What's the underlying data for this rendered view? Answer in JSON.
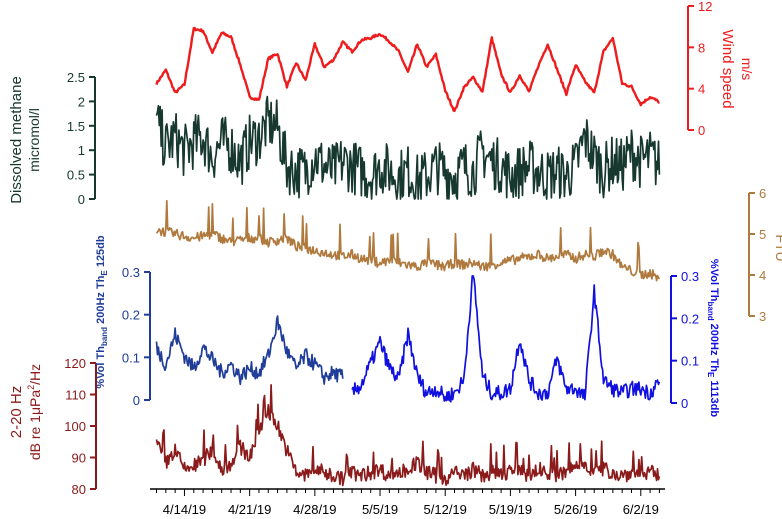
{
  "chart_data": {
    "type": "line",
    "x_axis": {
      "ticks": [
        {
          "day": 14,
          "label": "4/14/19"
        },
        {
          "day": 21,
          "label": "4/21/19"
        },
        {
          "day": 28,
          "label": "4/28/19"
        },
        {
          "day": 35,
          "label": "5/5/19"
        },
        {
          "day": 42,
          "label": "5/12/19"
        },
        {
          "day": 49,
          "label": "5/19/19"
        },
        {
          "day": 56,
          "label": "5/26/19"
        },
        {
          "day": 63,
          "label": "6/2/19"
        }
      ],
      "range_days": [
        10.3,
        65.6
      ]
    },
    "panels": [
      {
        "id": "wind",
        "axis_side": "right",
        "color": "#ee1c1c",
        "ylabel": "Wind speed",
        "unit": "m/s",
        "ylim": [
          0,
          12
        ],
        "ticks": [
          "0",
          "4",
          "8",
          "12"
        ],
        "x": [
          11,
          12,
          13,
          14,
          15,
          16,
          17,
          18,
          19,
          20,
          21,
          22,
          23,
          24,
          25,
          26,
          27,
          28,
          29,
          30,
          31,
          32,
          33,
          34,
          35,
          36,
          37,
          38,
          39,
          40,
          41,
          42,
          43,
          44,
          45,
          46,
          47,
          48,
          49,
          50,
          51,
          52,
          53,
          54,
          55,
          56,
          57,
          58,
          59,
          60,
          61,
          62,
          63,
          64,
          65
        ],
        "values": [
          4.5,
          5.8,
          3.6,
          4.4,
          9.8,
          9.6,
          7.5,
          9.4,
          9,
          6.3,
          3.2,
          2.9,
          6.9,
          7.4,
          4.2,
          6.5,
          4.8,
          8.3,
          6.1,
          6.8,
          8.5,
          7.6,
          8.7,
          8.9,
          9.3,
          8.6,
          7.6,
          5.6,
          8.3,
          6.1,
          7.3,
          3.8,
          1.8,
          4.1,
          5.1,
          3.7,
          8.9,
          5.4,
          3.6,
          5.3,
          3.7,
          6.2,
          8.3,
          5.9,
          3.5,
          6.3,
          4.7,
          3.6,
          7.6,
          8.9,
          4.5,
          4.2,
          2.5,
          3.2,
          2.7
        ]
      },
      {
        "id": "methane",
        "axis_side": "left",
        "color": "#16382f",
        "ylabel": "Dissolved methane",
        "unit": "micromol/l",
        "ylim": [
          0,
          2.5
        ],
        "ticks": [
          "0",
          "0.5",
          "1",
          "1.5",
          "2",
          "2.5"
        ],
        "x": [
          11,
          12,
          13,
          14,
          15,
          16,
          17,
          18,
          19,
          20,
          21,
          22,
          23,
          24,
          25,
          26,
          27,
          28,
          29,
          30,
          31,
          32,
          33,
          34,
          35,
          36,
          37,
          38,
          39,
          40,
          41,
          42,
          43,
          44,
          45,
          46,
          47,
          48,
          49,
          50,
          51,
          52,
          53,
          54,
          55,
          56,
          57,
          58,
          59,
          60,
          61,
          62,
          63,
          64,
          65
        ],
        "values": [
          1.4,
          0.9,
          1.1,
          0.8,
          1.0,
          1.1,
          0.7,
          1.0,
          0.9,
          0.6,
          1.0,
          1.1,
          1.4,
          1.3,
          0.5,
          0.4,
          0.4,
          0.7,
          0.5,
          0.4,
          0.6,
          0.5,
          0.4,
          0.3,
          0.5,
          0.4,
          0.3,
          0.4,
          0.2,
          0.3,
          0.5,
          0.4,
          0.3,
          0.5,
          0.4,
          0.8,
          0.6,
          0.5,
          0.3,
          0.4,
          0.5,
          0.4,
          0.3,
          0.4,
          0.3,
          0.5,
          1.1,
          0.7,
          0.4,
          0.6,
          0.5,
          0.8,
          0.6,
          0.7,
          0.5
        ]
      },
      {
        "id": "turbidity",
        "axis_side": "right",
        "color": "#b07a3e",
        "ylabel": "FTU",
        "unit": "",
        "ylim": [
          3,
          6
        ],
        "ticks": [
          "3",
          "4",
          "5",
          "6"
        ],
        "x": [
          11,
          12,
          13,
          14,
          15,
          16,
          17,
          18,
          19,
          20,
          21,
          22,
          23,
          24,
          25,
          26,
          27,
          28,
          29,
          30,
          31,
          32,
          33,
          34,
          35,
          36,
          37,
          38,
          39,
          40,
          41,
          42,
          43,
          44,
          45,
          46,
          47,
          48,
          49,
          50,
          51,
          52,
          53,
          54,
          55,
          56,
          57,
          58,
          59,
          60,
          61,
          62,
          63,
          64,
          65
        ],
        "values": [
          5.1,
          5.05,
          5.0,
          4.95,
          4.9,
          4.95,
          5.0,
          4.9,
          4.8,
          4.85,
          4.9,
          4.9,
          4.8,
          4.85,
          4.9,
          4.7,
          4.65,
          4.6,
          4.55,
          4.5,
          4.45,
          4.5,
          4.4,
          4.35,
          4.3,
          4.35,
          4.3,
          4.25,
          4.2,
          4.3,
          4.25,
          4.2,
          4.3,
          4.25,
          4.3,
          4.2,
          4.25,
          4.3,
          4.35,
          4.4,
          4.45,
          4.5,
          4.4,
          4.45,
          4.5,
          4.4,
          4.5,
          4.45,
          4.6,
          4.5,
          4.2,
          4.1,
          4.0,
          4.05,
          3.9
        ]
      },
      {
        "id": "vol_125db",
        "axis_side": "left",
        "color": "#1f3d99",
        "ylabel": "%Vol Th_band 200Hz Th_E 125db",
        "ylim": [
          0,
          0.3
        ],
        "ticks": [
          "0",
          "0.1",
          "0.2",
          "0.3"
        ],
        "x": [
          11,
          12,
          13,
          14,
          15,
          16,
          17,
          18,
          19,
          20,
          21,
          22,
          23,
          24,
          25,
          26,
          27,
          28,
          29,
          30,
          31
        ],
        "values": [
          0.12,
          0.08,
          0.15,
          0.1,
          0.07,
          0.12,
          0.09,
          0.06,
          0.08,
          0.05,
          0.07,
          0.06,
          0.1,
          0.18,
          0.11,
          0.07,
          0.1,
          0.08,
          0.05,
          0.06,
          0.05
        ]
      },
      {
        "id": "vol_1113db",
        "axis_side": "right",
        "color": "#1010e0",
        "ylabel": "%Vol Th_band 200Hz Th_E 1113db",
        "ylim": [
          0,
          0.3
        ],
        "ticks": [
          "0",
          "0.1",
          "0.2",
          "0.3"
        ],
        "x": [
          32,
          33,
          34,
          35,
          36,
          37,
          38,
          39,
          40,
          41,
          42,
          43,
          44,
          45,
          46,
          47,
          48,
          49,
          50,
          51,
          52,
          53,
          54,
          55,
          56,
          57,
          58,
          59,
          60,
          61,
          62,
          63,
          64,
          65
        ],
        "values": [
          0.02,
          0.04,
          0.09,
          0.14,
          0.08,
          0.05,
          0.16,
          0.06,
          0.02,
          0.03,
          0.01,
          0.02,
          0.05,
          0.31,
          0.06,
          0.02,
          0.02,
          0.03,
          0.15,
          0.05,
          0.02,
          0.02,
          0.1,
          0.03,
          0.03,
          0.01,
          0.26,
          0.05,
          0.03,
          0.02,
          0.03,
          0.03,
          0.02,
          0.05
        ]
      },
      {
        "id": "noise",
        "axis_side": "left",
        "color": "#8b1a1a",
        "ylabel": "2-20 Hz",
        "unit": "dB re 1μPa²/Hz",
        "ylim": [
          80,
          120
        ],
        "ticks": [
          "80",
          "90",
          "100",
          "110",
          "120"
        ],
        "x": [
          11,
          12,
          13,
          14,
          15,
          16,
          17,
          18,
          19,
          20,
          21,
          22,
          23,
          24,
          25,
          26,
          27,
          28,
          29,
          30,
          31,
          32,
          33,
          34,
          35,
          36,
          37,
          38,
          39,
          40,
          41,
          42,
          43,
          44,
          45,
          46,
          47,
          48,
          49,
          50,
          51,
          52,
          53,
          54,
          55,
          56,
          57,
          58,
          59,
          60,
          61,
          62,
          63,
          64,
          65
        ],
        "values": [
          94,
          88,
          92,
          86,
          87,
          89,
          92,
          86,
          88,
          93,
          90,
          98,
          105,
          100,
          92,
          85,
          84,
          86,
          85,
          84,
          83,
          85,
          84,
          85,
          86,
          84,
          85,
          86,
          88,
          85,
          84,
          83,
          85,
          84,
          86,
          84,
          85,
          84,
          86,
          85,
          84,
          86,
          85,
          84,
          85,
          87,
          88,
          85,
          86,
          85,
          84,
          85,
          84,
          85,
          84
        ]
      }
    ]
  },
  "labels": {
    "wind_title": "Wind speed",
    "wind_unit": "m/s",
    "methane_title": "Dissolved methane",
    "methane_unit": "micromol/l",
    "ftu": "FTU",
    "left_vol_main": "%Vol Th",
    "left_vol_sub": "band",
    "left_vol_mid": " 200Hz Th",
    "left_vol_sub2": "E",
    "left_vol_end": " 125db",
    "right_vol_main": "%Vol Th",
    "right_vol_sub": "band",
    "right_vol_mid": " 200Hz Th",
    "right_vol_sub2": "E",
    "right_vol_end": " 1113db",
    "noise_band": "2-20 Hz",
    "noise_unit_a": "dB re 1μPa",
    "noise_unit_sup": "2",
    "noise_unit_b": "/Hz"
  }
}
